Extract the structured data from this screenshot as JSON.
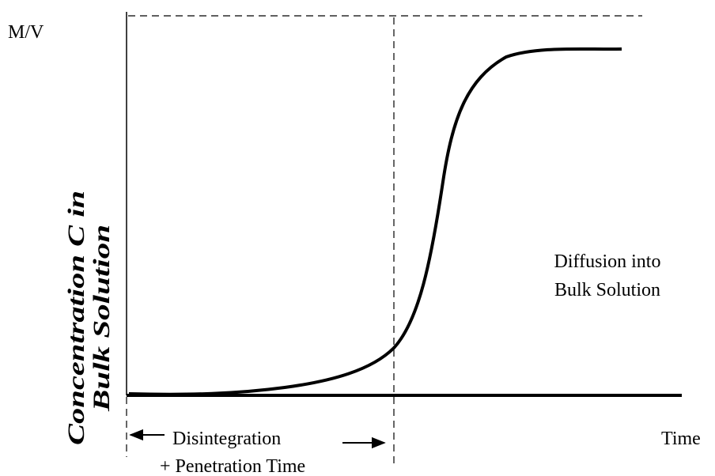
{
  "y_axis": {
    "unit": "M/V",
    "label": [
      "Concentration C in",
      "Bulk Solution"
    ]
  },
  "x_axis": {
    "label": "Time"
  },
  "regions": {
    "left": [
      "Disintegration",
      "+ Penetration Time"
    ],
    "right": [
      "Diffusion into",
      "Bulk Solution"
    ]
  }
}
